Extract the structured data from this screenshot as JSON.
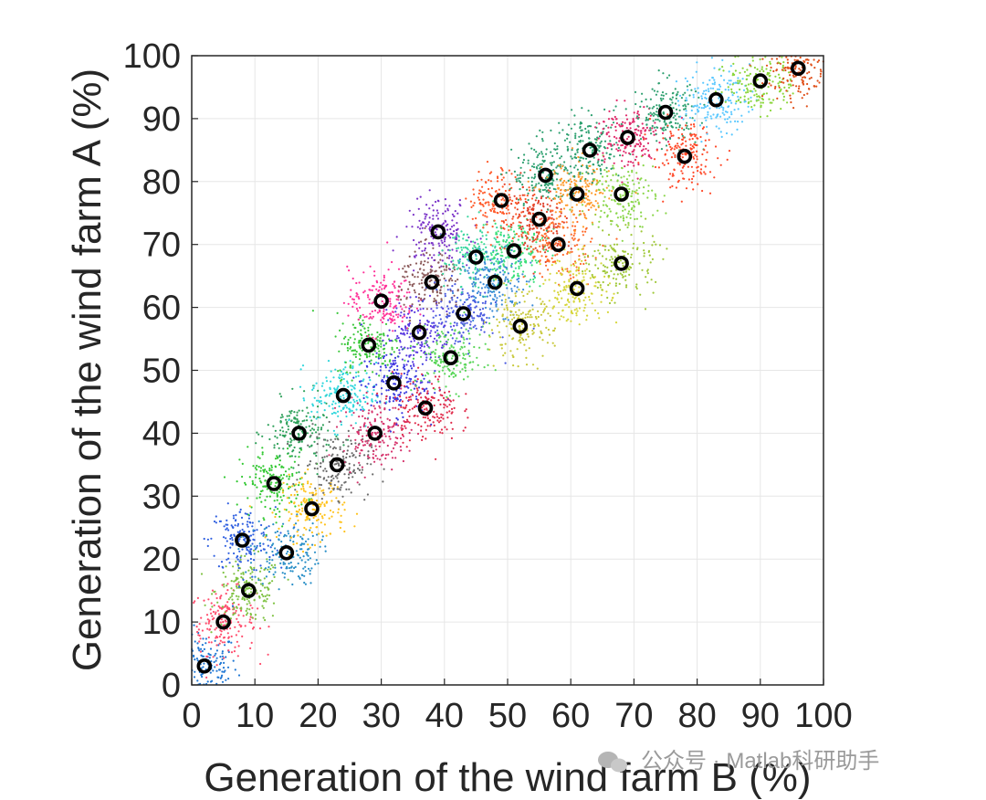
{
  "watermark": {
    "text": "公众号 · Matlab科研助手",
    "icon": "wechat-icon"
  },
  "chart_data": {
    "type": "scatter",
    "title": "",
    "xlabel": "Generation of the wind farm B (%)",
    "ylabel": "Generation of the wind farm A (%)",
    "xlim": [
      0,
      100
    ],
    "ylim": [
      0,
      100
    ],
    "xticks": [
      "0",
      "10",
      "20",
      "30",
      "40",
      "50",
      "60",
      "70",
      "80",
      "90",
      "100"
    ],
    "yticks": [
      "0",
      "10",
      "20",
      "30",
      "40",
      "50",
      "60",
      "70",
      "80",
      "90",
      "100"
    ],
    "grid": true,
    "legend": "none",
    "series": [
      {
        "type": "cluster-centroids",
        "marker": "open-circle",
        "color": "#000000",
        "x": [
          2,
          5,
          9,
          8,
          15,
          13,
          19,
          17,
          23,
          24,
          28,
          29,
          32,
          30,
          36,
          37,
          38,
          39,
          41,
          43,
          45,
          48,
          49,
          51,
          52,
          55,
          56,
          58,
          61,
          61,
          63,
          68,
          69,
          68,
          75,
          78,
          83,
          90,
          96
        ],
        "y": [
          3,
          10,
          15,
          23,
          21,
          32,
          28,
          40,
          35,
          46,
          54,
          40,
          48,
          61,
          56,
          44,
          64,
          72,
          52,
          59,
          68,
          64,
          77,
          69,
          57,
          74,
          81,
          70,
          78,
          63,
          85,
          78,
          87,
          67,
          91,
          84,
          93,
          96,
          98
        ]
      }
    ],
    "cluster_colors": [
      "#1f77d4",
      "#ff4d6d",
      "#7fc242",
      "#2f5fe0",
      "#2a8fc7",
      "#32c832",
      "#ffc21a",
      "#2ea05a",
      "#6b6b6b",
      "#2fd6dc",
      "#3cc83c",
      "#d6336c",
      "#3a3ae0",
      "#ff3399",
      "#5a3ae0",
      "#e02a4a",
      "#8b5a5a",
      "#7a33c8",
      "#5ad65a",
      "#4a5ae0",
      "#3ad6a0",
      "#3a8ad6",
      "#ff5a2a",
      "#3ae07a",
      "#c8c83a",
      "#e0402a",
      "#2ea070",
      "#ff6a2a",
      "#ff9a2a",
      "#d6d63a",
      "#2ea070",
      "#8ad64a",
      "#e02a6a",
      "#a0c83a",
      "#2ea070",
      "#ff4a2a",
      "#5ac8ff",
      "#8ad63a",
      "#e0501a"
    ]
  }
}
